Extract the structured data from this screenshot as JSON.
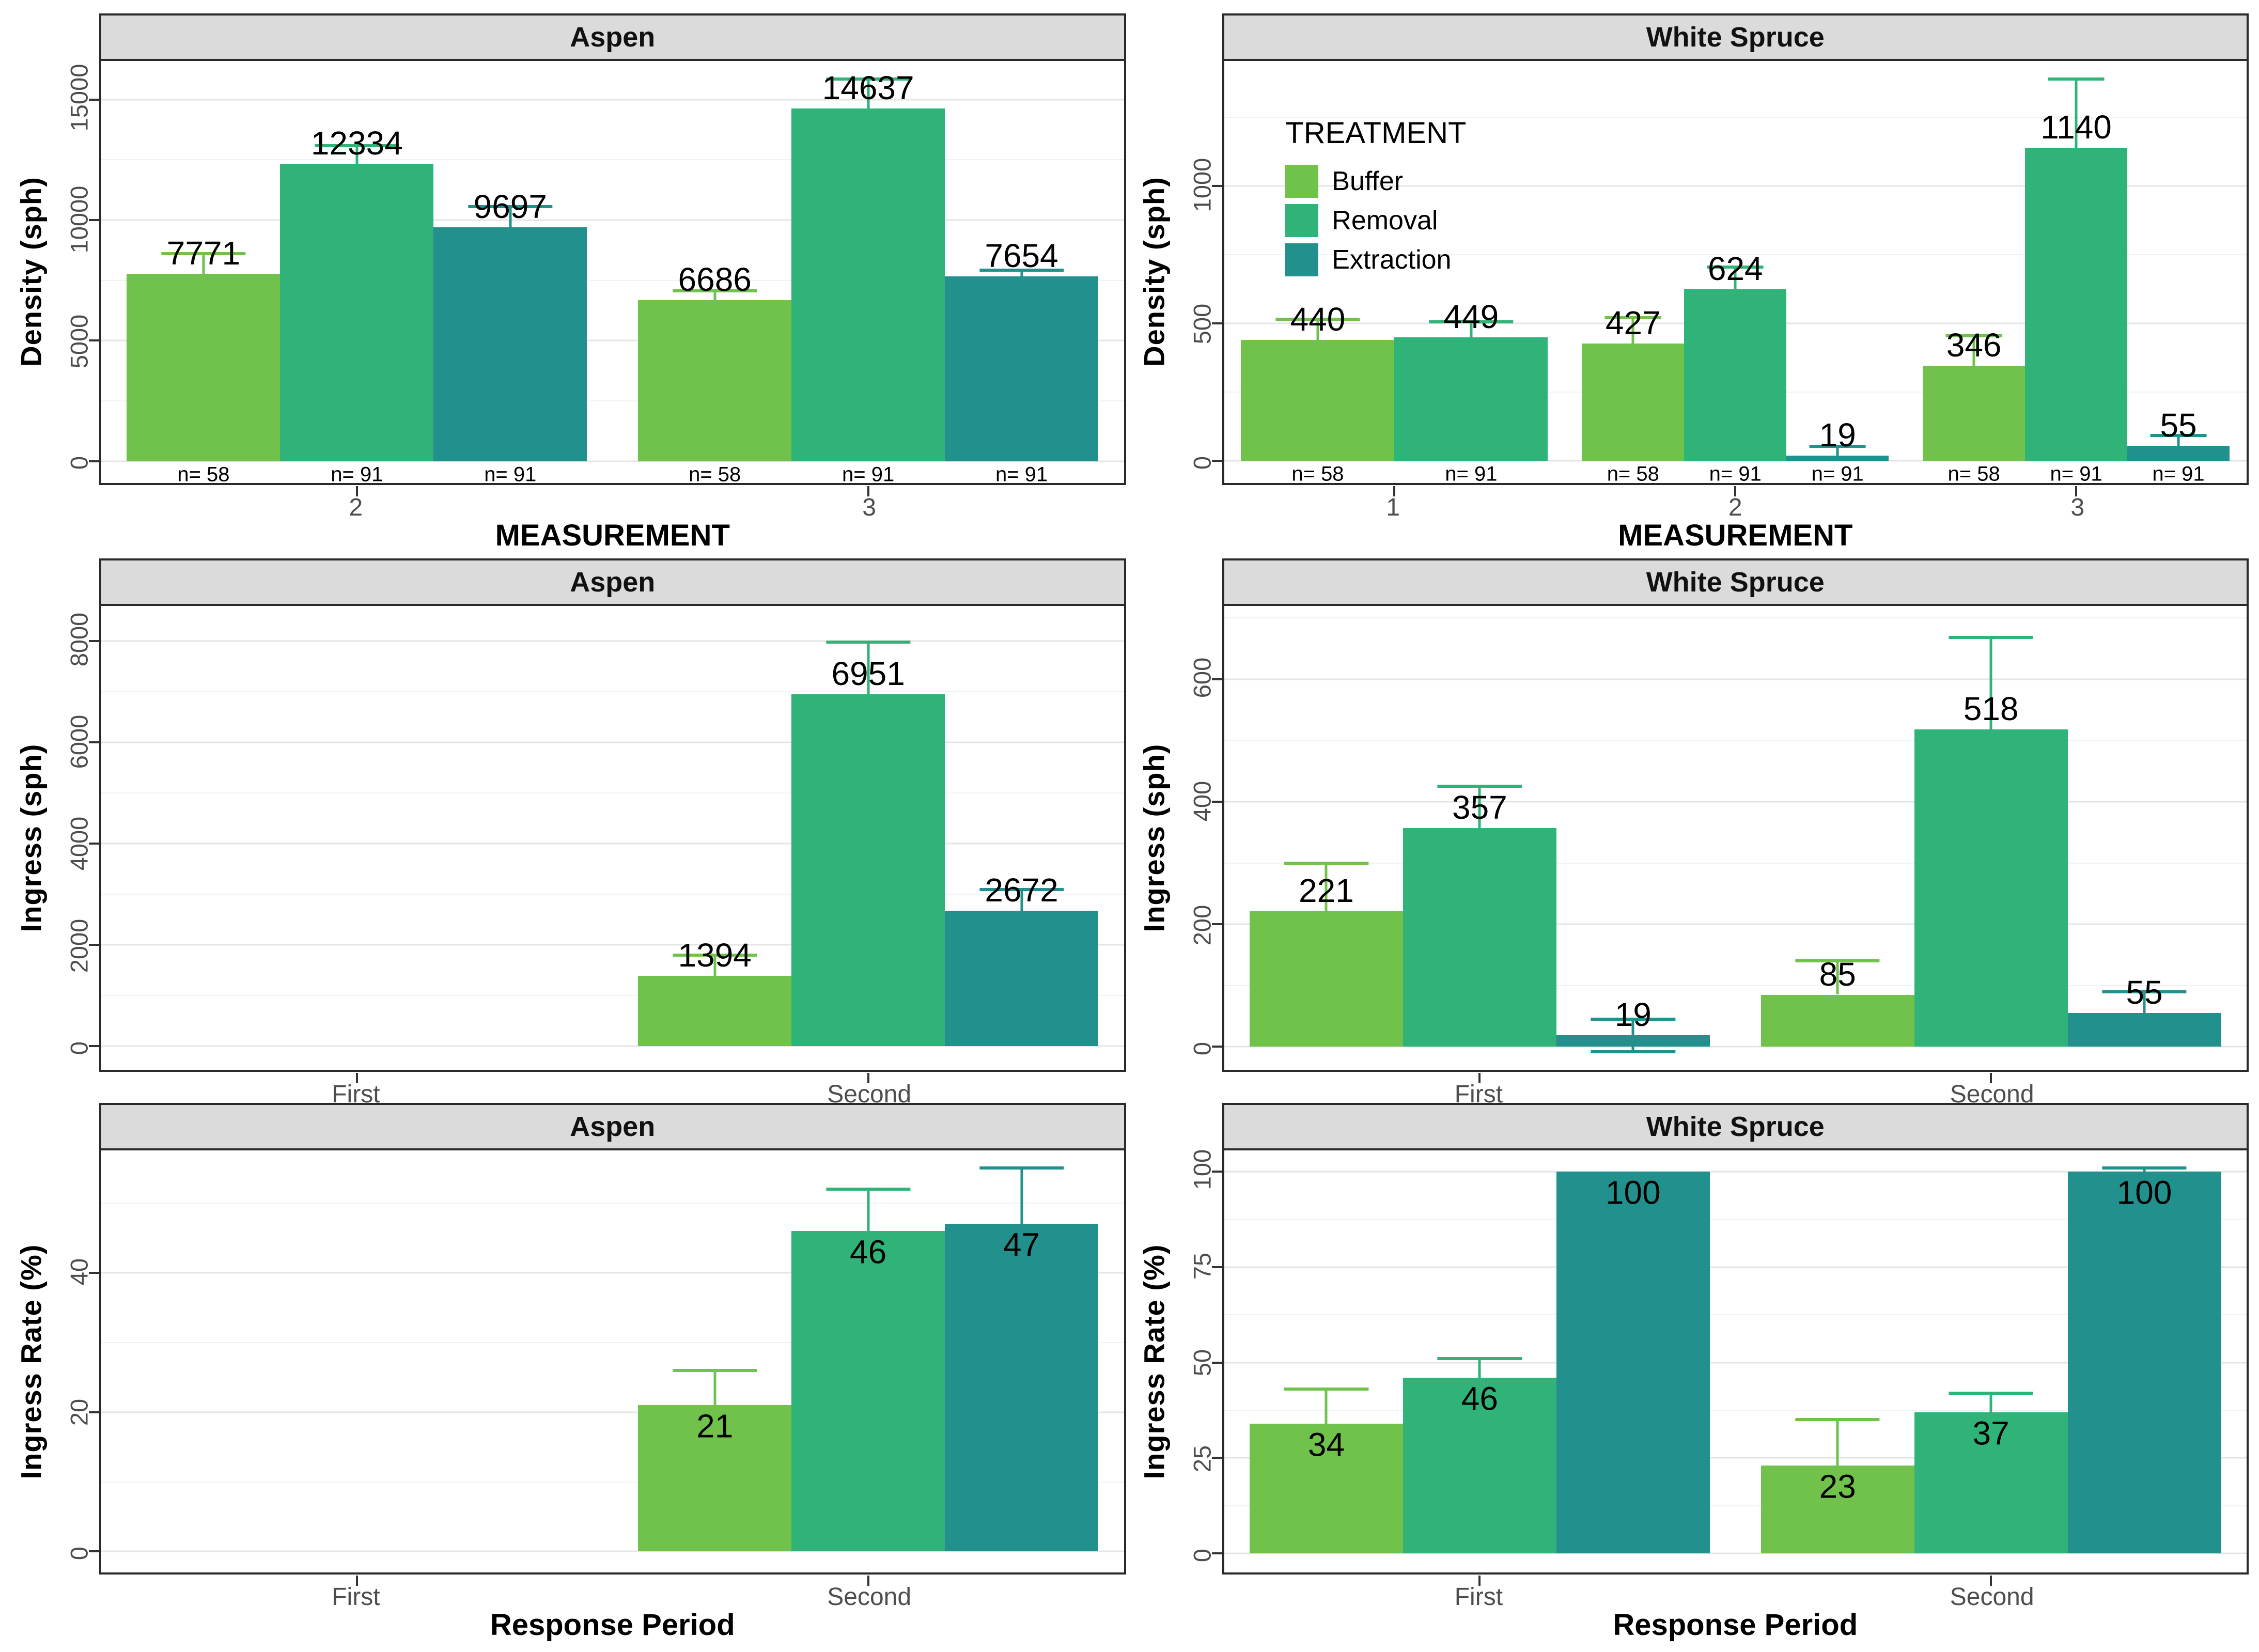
{
  "figure": {
    "background": "#FFFFFF",
    "strip_bg": "#DBDBDB",
    "panel_border": "#2A2A2A",
    "grid_major_color": "#E4E4E4",
    "grid_minor_color": "#F2F2F2",
    "tick_text_color": "#4D4D4D"
  },
  "chart_data": {
    "type": "bar",
    "legend": {
      "title": "TREATMENT",
      "position": "inside-top-right-panel",
      "items": [
        {
          "label": "Buffer",
          "color": "#70C24B"
        },
        {
          "label": "Removal",
          "color": "#2FB378"
        },
        {
          "label": "Extraction",
          "color": "#22908C"
        }
      ]
    },
    "treatments": [
      {
        "name": "Buffer",
        "color": "#70C24B"
      },
      {
        "name": "Removal",
        "color": "#2FB378"
      },
      {
        "name": "Extraction",
        "color": "#22908C"
      }
    ],
    "rows": [
      {
        "ylabel": "Density (sph)",
        "xlabel": "MEASUREMENT",
        "panels": [
          {
            "strip": "Aspen",
            "show_legend": false,
            "value_label_pos": "above",
            "ylim": [
              -900,
              16600
            ],
            "yticks": [
              0,
              5000,
              10000,
              15000
            ],
            "yminor": [
              2500,
              7500,
              12500
            ],
            "categories": [
              {
                "tick": "2",
                "bars": [
                  {
                    "treatment": "Buffer",
                    "value": 7771,
                    "label": "7771",
                    "n": "n= 58",
                    "err_hi": 8600
                  },
                  {
                    "treatment": "Removal",
                    "value": 12334,
                    "label": "12334",
                    "n": "n= 91",
                    "err_hi": 13080
                  },
                  {
                    "treatment": "Extraction",
                    "value": 9697,
                    "label": "9697",
                    "n": "n= 91",
                    "err_hi": 10560
                  }
                ]
              },
              {
                "tick": "3",
                "bars": [
                  {
                    "treatment": "Buffer",
                    "value": 6686,
                    "label": "6686",
                    "n": "n= 58",
                    "err_hi": 7060
                  },
                  {
                    "treatment": "Removal",
                    "value": 14637,
                    "label": "14637",
                    "n": "n= 91",
                    "err_hi": 15840
                  },
                  {
                    "treatment": "Extraction",
                    "value": 7654,
                    "label": "7654",
                    "n": "n= 91",
                    "err_hi": 7920
                  }
                ]
              }
            ]
          },
          {
            "strip": "White Spruce",
            "show_legend": true,
            "value_label_pos": "above",
            "ylim": [
              -80,
              1455
            ],
            "yticks": [
              0,
              500,
              1000
            ],
            "yminor": [
              250,
              750,
              1250
            ],
            "categories": [
              {
                "tick": "1",
                "bars": [
                  {
                    "treatment": "Buffer",
                    "value": 440,
                    "label": "440",
                    "n": "n= 58",
                    "err_hi": 515
                  },
                  {
                    "treatment": "Removal",
                    "value": 449,
                    "label": "449",
                    "n": "n= 91",
                    "err_hi": 505
                  }
                ]
              },
              {
                "tick": "2",
                "bars": [
                  {
                    "treatment": "Buffer",
                    "value": 427,
                    "label": "427",
                    "n": "n= 58",
                    "err_hi": 520
                  },
                  {
                    "treatment": "Removal",
                    "value": 624,
                    "label": "624",
                    "n": "n= 91",
                    "err_hi": 705
                  },
                  {
                    "treatment": "Extraction",
                    "value": 19,
                    "label": "19",
                    "n": "n= 91",
                    "err_hi": 52
                  }
                ]
              },
              {
                "tick": "3",
                "bars": [
                  {
                    "treatment": "Buffer",
                    "value": 346,
                    "label": "346",
                    "n": "n= 58",
                    "err_hi": 455
                  },
                  {
                    "treatment": "Removal",
                    "value": 1140,
                    "label": "1140",
                    "n": "n= 91",
                    "err_hi": 1390
                  },
                  {
                    "treatment": "Extraction",
                    "value": 55,
                    "label": "55",
                    "n": "n= 91",
                    "err_hi": 92
                  }
                ]
              }
            ]
          }
        ]
      },
      {
        "ylabel": "Ingress (sph)",
        "xlabel": null,
        "panels": [
          {
            "strip": "Aspen",
            "show_legend": false,
            "value_label_pos": "above",
            "ylim": [
              -470,
              8700
            ],
            "yticks": [
              0,
              2000,
              4000,
              6000,
              8000
            ],
            "yminor": [
              1000,
              3000,
              5000,
              7000
            ],
            "categories": [
              {
                "tick": "First",
                "bars": []
              },
              {
                "tick": "Second",
                "bars": [
                  {
                    "treatment": "Buffer",
                    "value": 1394,
                    "label": "1394",
                    "err_hi": 1800
                  },
                  {
                    "treatment": "Removal",
                    "value": 6951,
                    "label": "6951",
                    "err_hi": 7980
                  },
                  {
                    "treatment": "Extraction",
                    "value": 2672,
                    "label": "2672",
                    "err_hi": 3090
                  }
                ]
              }
            ]
          },
          {
            "strip": "White Spruce",
            "show_legend": false,
            "value_label_pos": "above",
            "ylim": [
              -38,
              720
            ],
            "yticks": [
              0,
              200,
              400,
              600
            ],
            "yminor": [
              100,
              300,
              500,
              700
            ],
            "categories": [
              {
                "tick": "First",
                "bars": [
                  {
                    "treatment": "Buffer",
                    "value": 221,
                    "label": "221",
                    "err_hi": 300
                  },
                  {
                    "treatment": "Removal",
                    "value": 357,
                    "label": "357",
                    "err_hi": 425
                  },
                  {
                    "treatment": "Extraction",
                    "value": 19,
                    "label": "19",
                    "err_hi": 45,
                    "err_lo": -8
                  }
                ]
              },
              {
                "tick": "Second",
                "bars": [
                  {
                    "treatment": "Buffer",
                    "value": 85,
                    "label": "85",
                    "err_hi": 140
                  },
                  {
                    "treatment": "Removal",
                    "value": 518,
                    "label": "518",
                    "err_hi": 668
                  },
                  {
                    "treatment": "Extraction",
                    "value": 55,
                    "label": "55",
                    "err_hi": 90
                  }
                ]
              }
            ]
          }
        ]
      },
      {
        "ylabel": "Ingress Rate (%)",
        "xlabel": "Response Period",
        "panels": [
          {
            "strip": "Aspen",
            "show_legend": false,
            "value_label_pos": "below",
            "ylim": [
              -3,
              57.5
            ],
            "yticks": [
              0,
              20,
              40
            ],
            "yminor": [
              10,
              30,
              50
            ],
            "categories": [
              {
                "tick": "First",
                "bars": []
              },
              {
                "tick": "Second",
                "bars": [
                  {
                    "treatment": "Buffer",
                    "value": 21,
                    "label": "21",
                    "err_hi": 26
                  },
                  {
                    "treatment": "Removal",
                    "value": 46,
                    "label": "46",
                    "err_hi": 52
                  },
                  {
                    "treatment": "Extraction",
                    "value": 47,
                    "label": "47",
                    "err_hi": 55
                  }
                ]
              }
            ]
          },
          {
            "strip": "White Spruce",
            "show_legend": false,
            "value_label_pos": "below",
            "ylim": [
              -5,
              105.5
            ],
            "yticks": [
              0,
              25,
              50,
              75,
              100
            ],
            "yminor": [
              12.5,
              37.5,
              62.5,
              87.5
            ],
            "categories": [
              {
                "tick": "First",
                "bars": [
                  {
                    "treatment": "Buffer",
                    "value": 34,
                    "label": "34",
                    "err_hi": 43
                  },
                  {
                    "treatment": "Removal",
                    "value": 46,
                    "label": "46",
                    "err_hi": 51
                  },
                  {
                    "treatment": "Extraction",
                    "value": 100,
                    "label": "100",
                    "err_hi": null
                  }
                ]
              },
              {
                "tick": "Second",
                "bars": [
                  {
                    "treatment": "Buffer",
                    "value": 23,
                    "label": "23",
                    "err_hi": 35
                  },
                  {
                    "treatment": "Removal",
                    "value": 37,
                    "label": "37",
                    "err_hi": 42
                  },
                  {
                    "treatment": "Extraction",
                    "value": 100,
                    "label": "100",
                    "err_hi": 101
                  }
                ]
              }
            ]
          }
        ]
      }
    ]
  }
}
